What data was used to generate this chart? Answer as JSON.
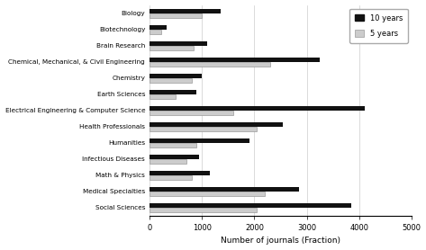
{
  "categories": [
    "Biology",
    "Biotechnology",
    "Brain Research",
    "Chemical, Mechanical, & Civil Engineering",
    "Chemistry",
    "Earth Sciences",
    "Electrical Engineering & Computer Science",
    "Health Professionals",
    "Humanities",
    "Infectious Diseases",
    "Math & Physics",
    "Medical Specialties",
    "Social Sciences"
  ],
  "values_10yr": [
    1350,
    320,
    1100,
    3250,
    1000,
    900,
    4100,
    2550,
    1900,
    950,
    1150,
    2850,
    3850
  ],
  "values_5yr": [
    1000,
    220,
    850,
    2300,
    800,
    500,
    1600,
    2050,
    900,
    700,
    800,
    2200,
    2050
  ],
  "color_10yr": "#111111",
  "color_5yr": "#cccccc",
  "xlabel": "Number of journals (Fraction)",
  "xlim": [
    0,
    5000
  ],
  "xticks": [
    0,
    1000,
    2000,
    3000,
    4000,
    5000
  ],
  "legend_10yr": "10 years",
  "legend_5yr": "5 years",
  "bar_height": 0.28,
  "background_color": "#ffffff",
  "grid_color": "#cccccc"
}
